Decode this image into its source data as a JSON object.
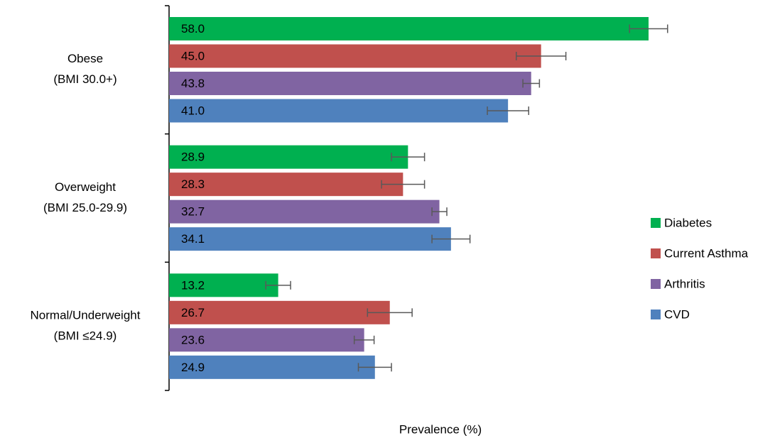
{
  "chart_data": {
    "type": "bar",
    "orientation": "horizontal",
    "categories": [
      [
        "Obese",
        "(BMI 30.0+)"
      ],
      [
        "Overweight",
        "(BMI 25.0-29.9)"
      ],
      [
        "Normal/Underweight",
        "(BMI ≤24.9)"
      ]
    ],
    "series": [
      {
        "name": "Diabetes",
        "color": "#00b050",
        "values": [
          58.0,
          28.9,
          13.2
        ],
        "value_labels": [
          "58.0",
          "28.9",
          "13.2"
        ],
        "errors": [
          2.3,
          2.0,
          1.5
        ]
      },
      {
        "name": "Current Asthma",
        "color": "#c0504d",
        "values": [
          45.0,
          28.3,
          26.7
        ],
        "value_labels": [
          "45.0",
          "28.3",
          "26.7"
        ],
        "errors": [
          3.0,
          2.6,
          2.7
        ]
      },
      {
        "name": "Arthritis",
        "color": "#8064a2",
        "values": [
          43.8,
          32.7,
          23.6
        ],
        "value_labels": [
          "43.8",
          "32.7",
          "23.6"
        ],
        "errors": [
          1.0,
          0.9,
          1.2
        ]
      },
      {
        "name": "CVD",
        "color": "#4f81bd",
        "values": [
          41.0,
          34.1,
          24.9
        ],
        "value_labels": [
          "41.0",
          "34.1",
          "24.9"
        ],
        "errors": [
          2.5,
          2.3,
          2.0
        ]
      }
    ],
    "xlabel": "Prevalence (%)",
    "xlim": [
      0,
      70
    ],
    "legend": "right"
  }
}
